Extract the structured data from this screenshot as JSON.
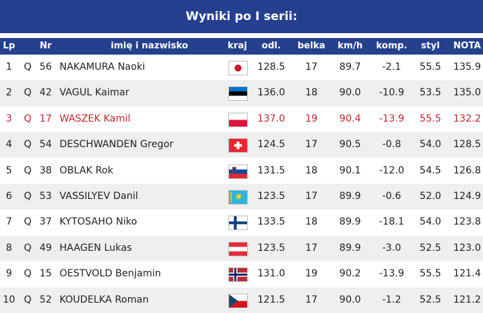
{
  "title": "Wyniki po I serii:",
  "table": {
    "header": [
      "Lp",
      "Nr",
      "imię i nazwisko",
      "kraj",
      "odl.",
      "belka",
      "km/h",
      "komp.",
      "styl",
      "NOTA"
    ],
    "rows": [
      [
        "1",
        "Q",
        "56",
        "NAKAMURA Naoki",
        "128.5",
        "17",
        "89.7",
        "-2.1",
        "55.5",
        "135.9"
      ],
      [
        "2",
        "Q",
        "42",
        "VAGUL Kaimar",
        "136.0",
        "18",
        "90.0",
        "-10.9",
        "53.5",
        "135.0"
      ],
      [
        "3",
        "Q",
        "17",
        "WASZEK Kamil",
        "137.0",
        "19",
        "90.4",
        "-13.9",
        "55.5",
        "132.2"
      ],
      [
        "4",
        "Q",
        "54",
        "DESCHWANDEN Gregor",
        "124.5",
        "17",
        "90.5",
        "-0.8",
        "54.0",
        "128.5"
      ],
      [
        "5",
        "Q",
        "38",
        "OBLAK Rok",
        "131.5",
        "18",
        "90.1",
        "-12.0",
        "54.5",
        "126.8"
      ],
      [
        "6",
        "Q",
        "53",
        "VASSILYEV Danil",
        "123.5",
        "17",
        "89.9",
        "-0.6",
        "52.0",
        "124.9"
      ],
      [
        "7",
        "Q",
        "37",
        "KYTOSAHO Niko",
        "133.5",
        "18",
        "89.9",
        "-18.1",
        "54.0",
        "123.8"
      ],
      [
        "8",
        "Q",
        "49",
        "HAAGEN Lukas",
        "123.5",
        "17",
        "89.9",
        "-3.0",
        "52.5",
        "123.0"
      ],
      [
        "9",
        "Q",
        "15",
        "OESTVOLD Benjamin",
        "131.0",
        "19",
        "90.2",
        "-13.9",
        "55.5",
        "121.4"
      ],
      [
        "10",
        "Q",
        "52",
        "KOUDELKA Roman",
        "121.5",
        "17",
        "90.0",
        "-1.2",
        "52.5",
        "121.2"
      ]
    ]
  }
}
